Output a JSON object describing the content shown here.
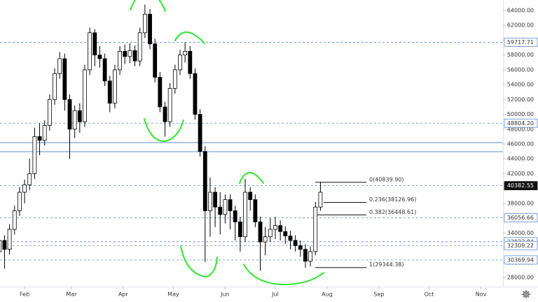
{
  "chart_data": {
    "type": "candlestick",
    "xlim": [
      -14.7,
      286.2
    ],
    "xticks": [
      {
        "value": 0,
        "label": "Feb"
      },
      {
        "value": 28,
        "label": "Mar"
      },
      {
        "value": 59,
        "label": "Apr"
      },
      {
        "value": 89,
        "label": "May"
      },
      {
        "value": 120,
        "label": "Jun"
      },
      {
        "value": 150,
        "label": "Jul"
      },
      {
        "value": 181,
        "label": "Aug"
      },
      {
        "value": 212,
        "label": "Sep"
      },
      {
        "value": 242,
        "label": "Oct"
      },
      {
        "value": 273,
        "label": "Nov"
      }
    ],
    "ylim": [
      26775,
      65415
    ],
    "yticks": [
      {
        "value": 28000,
        "label": "28000.00"
      },
      {
        "value": 30000,
        "label": "30000.00"
      },
      {
        "value": 32000,
        "label": "32000.00"
      },
      {
        "value": 34000,
        "label": "34000.00"
      },
      {
        "value": 36000,
        "label": "36000.00"
      },
      {
        "value": 38000,
        "label": "38000.00"
      },
      {
        "value": 40000,
        "label": "40000.00"
      },
      {
        "value": 42000,
        "label": "42000.00"
      },
      {
        "value": 44000,
        "label": "44000.00"
      },
      {
        "value": 46000,
        "label": "46000.00"
      },
      {
        "value": 48000,
        "label": "48000.00"
      },
      {
        "value": 50000,
        "label": "50000.00"
      },
      {
        "value": 52000,
        "label": "52000.00"
      },
      {
        "value": 54000,
        "label": "54000.00"
      },
      {
        "value": 56000,
        "label": "56000.00"
      },
      {
        "value": 58000,
        "label": "58000.00"
      },
      {
        "value": 60000,
        "label": "60000.00"
      },
      {
        "value": 62000,
        "label": "62000.00"
      },
      {
        "value": 64000,
        "label": "64000.00"
      }
    ],
    "x": [
      -15,
      -12,
      -9,
      -6,
      -3,
      0,
      3,
      6,
      9,
      12,
      15,
      18,
      21,
      24,
      27,
      30,
      33,
      36,
      39,
      42,
      45,
      48,
      51,
      54,
      57,
      60,
      63,
      66,
      69,
      72,
      75,
      78,
      81,
      84,
      87,
      90,
      93,
      96,
      99,
      102,
      105,
      108,
      111,
      114,
      117,
      120,
      123,
      126,
      129,
      132,
      135,
      138,
      141,
      144,
      147,
      150,
      153,
      156,
      159,
      162,
      165,
      168,
      171,
      174,
      177
    ],
    "open": [
      31500,
      33000,
      31800,
      34500,
      37000,
      39500,
      40500,
      42000,
      47000,
      46500,
      48500,
      52000,
      55500,
      57500,
      52000,
      48000,
      50500,
      49000,
      56000,
      61000,
      58000,
      57500,
      54500,
      51500,
      56000,
      58500,
      57800,
      58600,
      57200,
      61000,
      63500,
      59500,
      55000,
      51000,
      49000,
      53500,
      56000,
      58000,
      58500,
      55500,
      50000,
      45000,
      37000,
      39500,
      37500,
      36500,
      38500,
      37000,
      35500,
      33500,
      39500,
      38500,
      35500,
      32800,
      33500,
      34500,
      35000,
      34200,
      33600,
      33000,
      32300,
      31800,
      30200,
      31500,
      37500
    ],
    "high": [
      34000,
      33700,
      35200,
      37700,
      40200,
      41200,
      44000,
      48200,
      48800,
      49200,
      52700,
      56200,
      58400,
      58200,
      52700,
      51200,
      51500,
      56700,
      61700,
      61500,
      59200,
      58200,
      55200,
      56700,
      59200,
      59400,
      59600,
      59300,
      61700,
      64800,
      64200,
      60200,
      55700,
      51700,
      54200,
      56700,
      58700,
      59700,
      59200,
      56200,
      50700,
      45700,
      41500,
      40200,
      39500,
      39200,
      39200,
      37700,
      36200,
      41300,
      40200,
      39200,
      36200,
      34800,
      36000,
      36200,
      35700,
      34900,
      34300,
      33700,
      33000,
      32500,
      32200,
      38200,
      40900
    ],
    "low": [
      30500,
      29200,
      31100,
      33800,
      36300,
      38000,
      39800,
      41300,
      44500,
      45800,
      47800,
      51300,
      54800,
      50500,
      44000,
      46800,
      47500,
      48300,
      55300,
      56500,
      56300,
      53800,
      50300,
      50800,
      55300,
      56800,
      56900,
      56500,
      56500,
      60300,
      58800,
      54300,
      50300,
      47000,
      48300,
      52800,
      55300,
      57000,
      54800,
      49300,
      44300,
      30100,
      33500,
      34800,
      33800,
      35300,
      34500,
      33000,
      31500,
      32800,
      37000,
      34800,
      28900,
      31000,
      32800,
      33200,
      33000,
      32500,
      31800,
      31500,
      30800,
      29300,
      29500,
      31000,
      37000
    ],
    "close": [
      33000,
      31800,
      34500,
      37000,
      39500,
      40500,
      42000,
      47000,
      46500,
      48500,
      52000,
      55500,
      57500,
      52000,
      48000,
      50500,
      49000,
      56000,
      61000,
      58000,
      57500,
      54500,
      51500,
      56000,
      58500,
      57800,
      58600,
      57200,
      61000,
      63500,
      59500,
      55000,
      51000,
      49000,
      53500,
      56000,
      58000,
      58500,
      55500,
      50000,
      45000,
      37000,
      39500,
      37500,
      36500,
      38500,
      37000,
      35500,
      33500,
      39500,
      38500,
      35500,
      32800,
      33500,
      34500,
      35000,
      34200,
      33600,
      33000,
      32300,
      31800,
      30200,
      31500,
      37500,
      39500
    ],
    "up_color": "#ffffff",
    "down_color": "#000000",
    "price_lines": [
      59717.71,
      {
        "value": 48804.2,
        "label": "48804.20"
      },
      36056.66,
      32823.84,
      32309.22,
      30369.94
    ],
    "last_price": 40382.55,
    "line_color": "#5b8bd1",
    "zone_lines": [
      46190,
      44960
    ],
    "fib_levels": [
      {
        "value": 40839.9,
        "label": "0(40839.90)"
      },
      {
        "value": 38126.96,
        "label": "0.236(38126.96)"
      },
      {
        "value": 36448.61,
        "label": "0.382(36448.61)"
      },
      {
        "value": 29344.38,
        "label": "1(29344.38)"
      }
    ]
  }
}
